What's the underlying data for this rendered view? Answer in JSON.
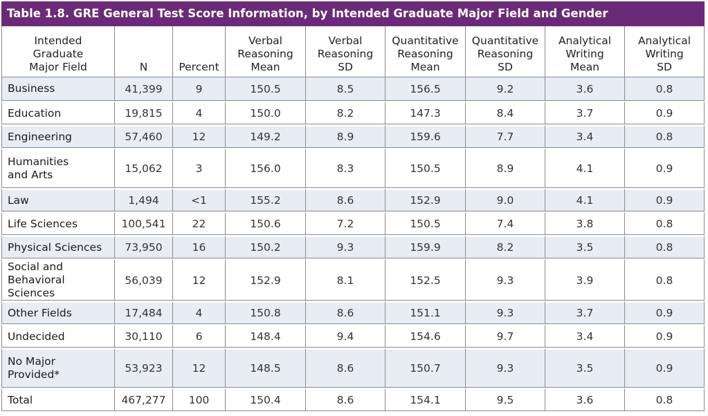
{
  "title": "Table 1.8. GRE General Test Score Information, by Intended Graduate Major Field and Gender",
  "headers": [
    "Intended\nGraduate\nMajor Field",
    "N",
    "Percent",
    "Verbal\nReasoning\nMean",
    "Verbal\nReasoning\nSD",
    "Quantitative\nReasoning\nMean",
    "Quantitative\nReasoning\nSD",
    "Analytical\nWriting\nMean",
    "Analytical\nWriting\nSD"
  ],
  "rows": [
    [
      "Business",
      "41,399",
      "9",
      "150.5",
      "8.5",
      "156.5",
      "9.2",
      "3.6",
      "0.8"
    ],
    [
      "Education",
      "19,815",
      "4",
      "150.0",
      "8.2",
      "147.3",
      "8.4",
      "3.7",
      "0.9"
    ],
    [
      "Engineering",
      "57,460",
      "12",
      "149.2",
      "8.9",
      "159.6",
      "7.7",
      "3.4",
      "0.8"
    ],
    [
      "Humanities\nand Arts",
      "15,062",
      "3",
      "156.0",
      "8.3",
      "150.5",
      "8.9",
      "4.1",
      "0.9"
    ],
    [
      "Law",
      "1,494",
      "<1",
      "155.2",
      "8.6",
      "152.9",
      "9.0",
      "4.1",
      "0.9"
    ],
    [
      "Life Sciences",
      "100,541",
      "22",
      "150.6",
      "7.2",
      "150.5",
      "7.4",
      "3.8",
      "0.8"
    ],
    [
      "Physical Sciences",
      "73,950",
      "16",
      "150.2",
      "9.3",
      "159.9",
      "8.2",
      "3.5",
      "0.8"
    ],
    [
      "Social and\nBehavioral Sciences",
      "56,039",
      "12",
      "152.9",
      "8.1",
      "152.5",
      "9.3",
      "3.9",
      "0.8"
    ],
    [
      "Other Fields",
      "17,484",
      "4",
      "150.8",
      "8.6",
      "151.1",
      "9.3",
      "3.7",
      "0.9"
    ],
    [
      "Undecided",
      "30,110",
      "6",
      "148.4",
      "9.4",
      "154.6",
      "9.7",
      "3.4",
      "0.9"
    ],
    [
      "No Major\nProvided*",
      "53,923",
      "12",
      "148.5",
      "8.6",
      "150.7",
      "9.3",
      "3.5",
      "0.9"
    ],
    [
      "Total",
      "467,277",
      "100",
      "150.4",
      "8.6",
      "154.1",
      "9.5",
      "3.6",
      "0.8"
    ]
  ],
  "colors": {
    "title_bar": "#6b2a77",
    "row_shade": "#e8edf4"
  }
}
